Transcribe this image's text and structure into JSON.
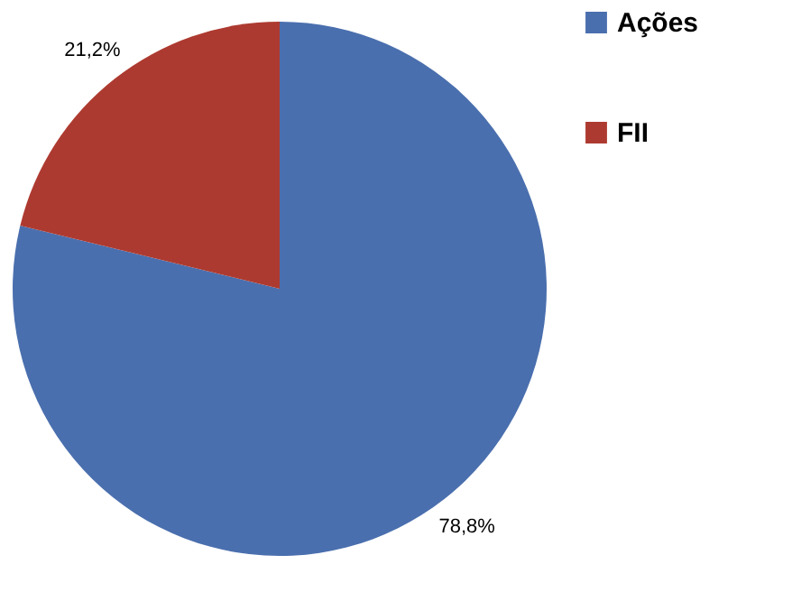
{
  "chart_data": {
    "type": "pie",
    "categories": [
      "Ações",
      "FII"
    ],
    "values": [
      78.8,
      21.2
    ],
    "colors": [
      "#4a6fae",
      "#ad3a30"
    ],
    "value_labels": [
      "78,8%",
      "21,2%"
    ],
    "legend": "right"
  }
}
